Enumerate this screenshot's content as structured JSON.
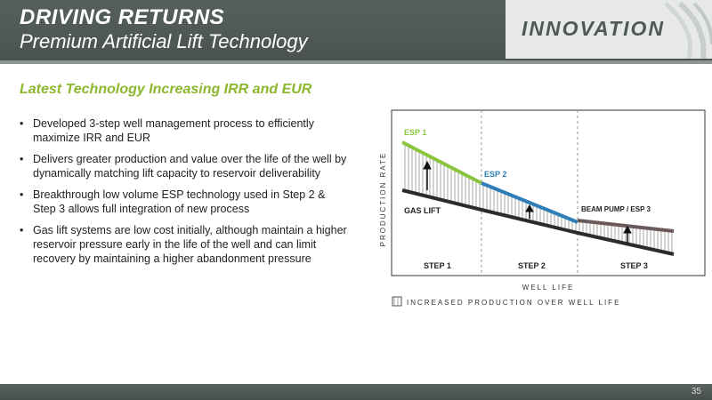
{
  "header": {
    "title": "DRIVING RETURNS",
    "subtitle": "Premium Artificial Lift Technology",
    "brand": "INNOVATION"
  },
  "subheading": "Latest Technology Increasing IRR and EUR",
  "bullets": [
    "Developed 3-step well management process to efficiently maximize IRR and EUR",
    "Delivers greater production and value over the life of the well by dynamically matching lift capacity to reservoir deliverability",
    "Breakthrough low volume ESP technology used in Step 2 & Step 3 allows full integration of new process",
    "Gas lift systems are low cost initially, although maintain a higher reservoir pressure early in the life of the well and can limit recovery by maintaining a higher abandonment pressure"
  ],
  "chart_data": {
    "type": "line",
    "xlabel": "WELL LIFE",
    "ylabel": "PRODUCTION RATE",
    "steps": [
      "STEP 1",
      "STEP 2",
      "STEP 3"
    ],
    "series": [
      {
        "name": "GAS LIFT",
        "color": "#2b2b2b"
      },
      {
        "name": "ESP 1",
        "color": "#8bc53f"
      },
      {
        "name": "ESP 2",
        "color": "#2e7fb8"
      },
      {
        "name": "BEAM PUMP / ESP 3",
        "color": "#6b5a5a"
      }
    ],
    "legend": "INCREASED PRODUCTION OVER WELL LIFE"
  },
  "footer": {
    "page_number": "35"
  }
}
